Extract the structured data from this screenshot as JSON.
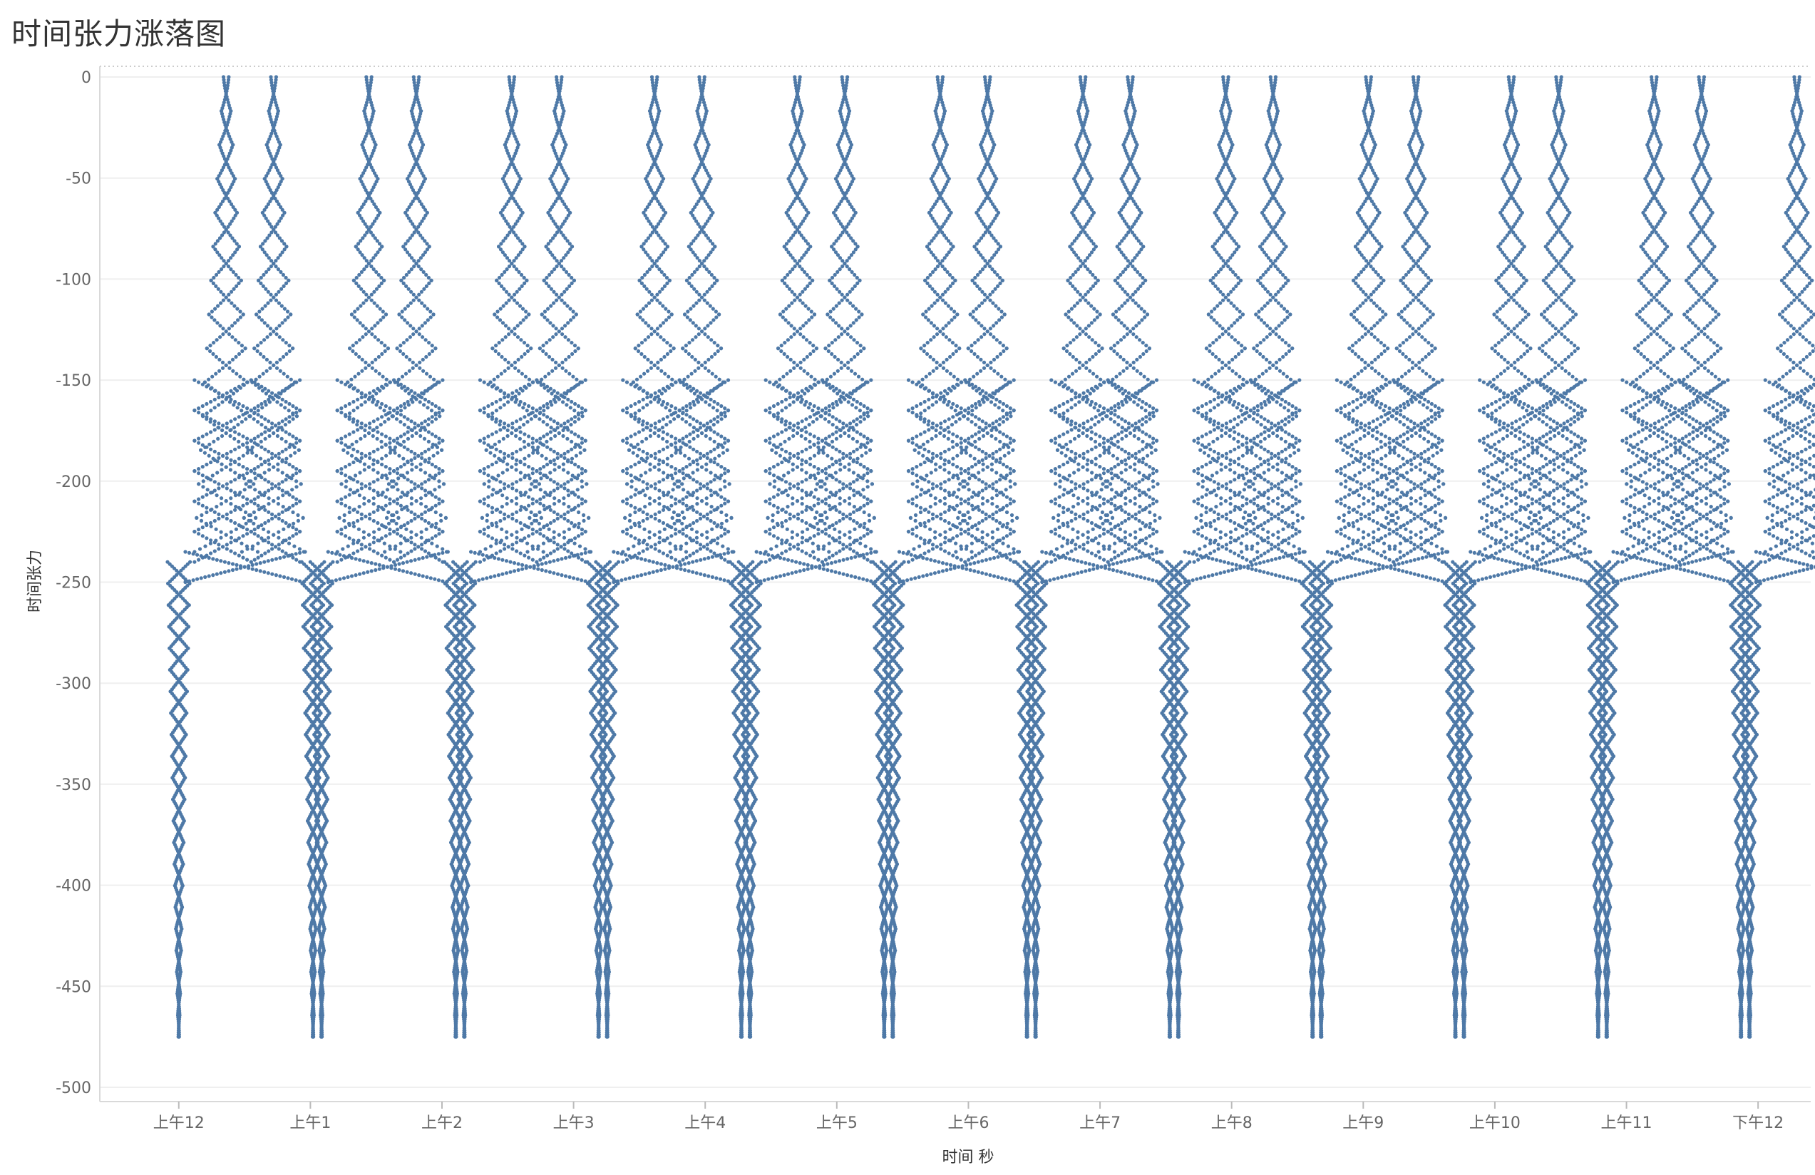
{
  "chart_data": {
    "type": "scatter",
    "title": "时间张力涨落图",
    "xlabel": "时间 秒",
    "ylabel": "时间张力",
    "ylim": [
      -500,
      0
    ],
    "yticks": [
      0,
      -50,
      -100,
      -150,
      -200,
      -250,
      -300,
      -350,
      -400,
      -450,
      -500
    ],
    "xlim": [
      -0.6,
      12.4
    ],
    "xticks": [
      {
        "value": 0,
        "label": "上午12"
      },
      {
        "value": 1,
        "label": "上午1"
      },
      {
        "value": 2,
        "label": "上午2"
      },
      {
        "value": 3,
        "label": "上午3"
      },
      {
        "value": 4,
        "label": "上午4"
      },
      {
        "value": 5,
        "label": "上午5"
      },
      {
        "value": 6,
        "label": "上午6"
      },
      {
        "value": 7,
        "label": "上午7"
      },
      {
        "value": 8,
        "label": "上午8"
      },
      {
        "value": 9,
        "label": "上午9"
      },
      {
        "value": 10,
        "label": "上午10"
      },
      {
        "value": 11,
        "label": "上午11"
      },
      {
        "value": 12,
        "label": "下午12"
      }
    ],
    "grid": true,
    "marker_color": "#4e79a7",
    "pattern": {
      "cycles_per_hour": 1,
      "outer_envelope": [
        {
          "x": 0.0,
          "y": -470
        },
        {
          "x": 0.12,
          "y": -238
        },
        {
          "x": 0.35,
          "y": 0
        },
        {
          "x": 0.55,
          "y": -150
        },
        {
          "x": 0.72,
          "y": -232
        },
        {
          "x": 0.92,
          "y": -250
        },
        {
          "x": 1.1,
          "y": -476
        }
      ],
      "inner_lobe": [
        {
          "x": 0.42,
          "y": -235
        },
        {
          "x": 0.72,
          "y": 0
        },
        {
          "x": 0.82,
          "y": -235
        }
      ]
    }
  }
}
